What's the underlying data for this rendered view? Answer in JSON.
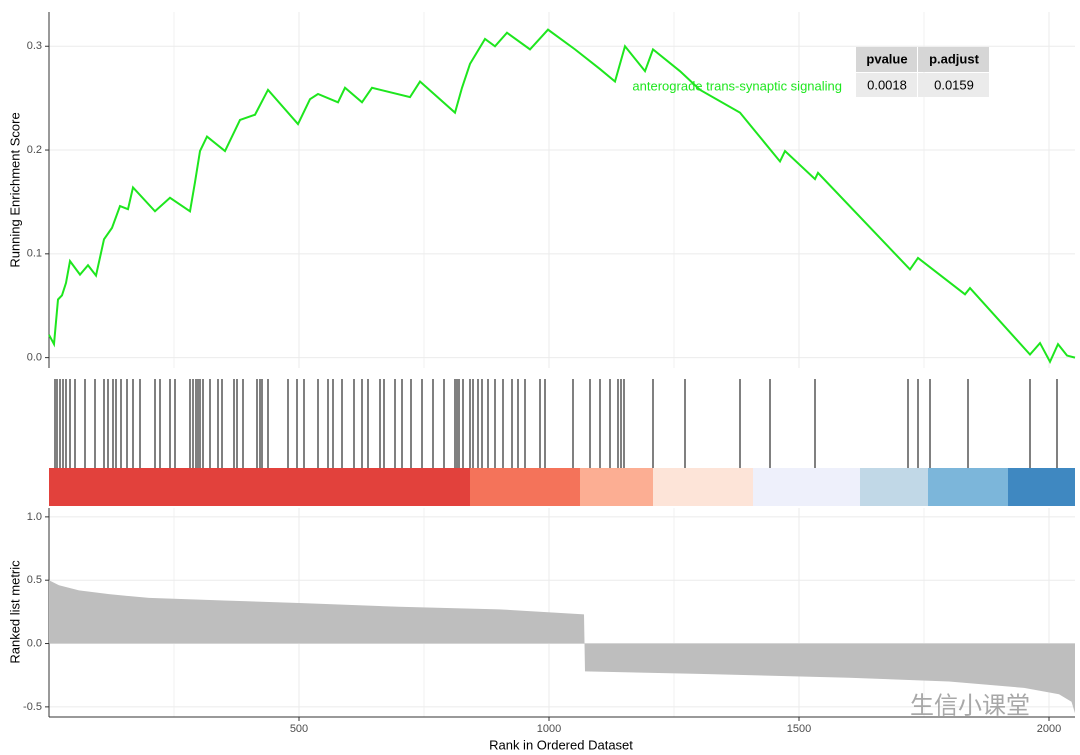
{
  "chart_data": {
    "type": "gsea",
    "xlabel": "Rank in Ordered Dataset",
    "xlim": [
      0,
      2052
    ],
    "xticks": [
      500,
      1000,
      1500,
      2000
    ],
    "x_minor_grid": [
      250,
      750,
      1250,
      1750
    ],
    "grid": true,
    "es_panel": {
      "ylabel": "Running Enrichment Score",
      "ylim": [
        -0.01,
        0.333
      ],
      "yticks": [
        {
          "value": 0,
          "label": "0.0"
        },
        0.1,
        0.2,
        0.3
      ],
      "x": [
        0,
        10,
        18,
        26,
        34,
        42,
        62,
        78,
        94,
        110,
        126,
        142,
        158,
        168,
        212,
        242,
        282,
        292,
        302,
        316,
        352,
        382,
        412,
        438,
        498,
        522,
        538,
        578,
        592,
        626,
        646,
        722,
        742,
        812,
        826,
        842,
        872,
        892,
        916,
        962,
        998,
        1052,
        1102,
        1132,
        1152,
        1192,
        1208,
        1262,
        1302,
        1382,
        1462,
        1472,
        1532,
        1538,
        1712,
        1722,
        1738,
        1832,
        1842,
        1962,
        1982,
        2002,
        2018,
        2036,
        2052
      ],
      "series": [
        {
          "name": "anterograde trans-synaptic signaling",
          "color": "#1ee61e",
          "values": [
            0.022,
            0.013,
            0.056,
            0.06,
            0.072,
            0.093,
            0.08,
            0.089,
            0.079,
            0.114,
            0.125,
            0.146,
            0.143,
            0.164,
            0.141,
            0.154,
            0.141,
            0.169,
            0.199,
            0.213,
            0.199,
            0.229,
            0.234,
            0.258,
            0.225,
            0.249,
            0.254,
            0.246,
            0.26,
            0.246,
            0.26,
            0.251,
            0.266,
            0.236,
            0.26,
            0.283,
            0.307,
            0.3,
            0.313,
            0.297,
            0.316,
            0.297,
            0.278,
            0.266,
            0.3,
            0.276,
            0.297,
            0.276,
            0.258,
            0.236,
            0.189,
            0.199,
            0.172,
            0.178,
            0.09,
            0.085,
            0.096,
            0.061,
            0.067,
            0.003,
            0.014,
            -0.004,
            0.013,
            0.002,
            0
          ]
        }
      ]
    },
    "hits": [
      12,
      16,
      22,
      28,
      34,
      42,
      52,
      72,
      92,
      110,
      118,
      128,
      134,
      144,
      156,
      168,
      182,
      212,
      222,
      242,
      252,
      282,
      288,
      294,
      298,
      302,
      308,
      322,
      338,
      346,
      370,
      376,
      388,
      416,
      422,
      426,
      438,
      478,
      496,
      510,
      538,
      558,
      568,
      586,
      610,
      626,
      638,
      662,
      670,
      692,
      706,
      724,
      746,
      768,
      790,
      812,
      816,
      820,
      828,
      842,
      848,
      858,
      866,
      878,
      892,
      908,
      926,
      938,
      952,
      982,
      992,
      1048,
      1082,
      1102,
      1122,
      1138,
      1144,
      1150,
      1208,
      1272,
      1382,
      1442,
      1532,
      1718,
      1738,
      1762,
      1838,
      1962,
      2016
    ],
    "heatmap": {
      "bins": [
        0,
        842,
        1062,
        1208,
        1408,
        1622,
        1758,
        1918,
        2052
      ],
      "colors": [
        "#e2413c",
        "#f4735a",
        "#fcae93",
        "#fde4d8",
        "#eef0fb",
        "#c1d8e7",
        "#7cb6da",
        "#3f88c1"
      ]
    },
    "metric_panel": {
      "ylabel": "Ranked list metric",
      "ylim": [
        -0.58,
        1.07
      ],
      "yticks": [
        {
          "value": 1,
          "label": "1.0"
        },
        0.5,
        {
          "value": 0,
          "label": "0.0"
        },
        -0.5
      ],
      "color": "#bebebe",
      "x": [
        0,
        20,
        60,
        120,
        200,
        350,
        500,
        700,
        900,
        1070,
        1072,
        1300,
        1600,
        1800,
        1950,
        2020,
        2045,
        2052
      ],
      "values": [
        0.5,
        0.46,
        0.42,
        0.39,
        0.36,
        0.34,
        0.32,
        0.29,
        0.27,
        0.23,
        -0.22,
        -0.24,
        -0.27,
        -0.3,
        -0.35,
        -0.4,
        -0.46,
        -0.55
      ]
    },
    "table": {
      "columns": [
        "pvalue",
        "p.adjust"
      ],
      "rows": [
        [
          "0.0018",
          "0.0159"
        ]
      ]
    },
    "watermark": "生信小课堂"
  }
}
